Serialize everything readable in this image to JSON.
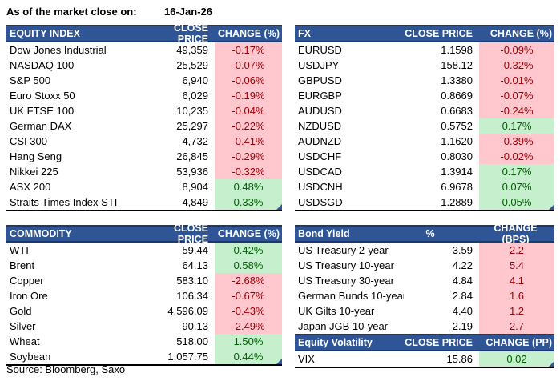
{
  "page": {
    "as_of_label": "As of the market close on:",
    "as_of_date": "16-Jan-26",
    "source": "Source: Bloomberg, Saxo"
  },
  "colors": {
    "header_bg": "#2F5597",
    "header_border": "#1F3864",
    "negative_bg": "#FFC7CE",
    "negative_text": "#9C0006",
    "positive_bg": "#C6EFCE",
    "positive_text": "#006100"
  },
  "tables": {
    "equity_index": {
      "title": "EQUITY INDEX",
      "col2": "CLOSE PRICE",
      "col3": "CHANGE (%)",
      "corner_marker": true,
      "rows": [
        [
          "Dow Jones Industrial",
          "49,359",
          "-0.17%",
          "neg"
        ],
        [
          "NASDAQ 100",
          "25,529",
          "-0.07%",
          "neg"
        ],
        [
          "S&P 500",
          "6,940",
          "-0.06%",
          "neg"
        ],
        [
          "Euro Stoxx 50",
          "6,029",
          "-0.19%",
          "neg"
        ],
        [
          "UK FTSE 100",
          "10,235",
          "-0.04%",
          "neg"
        ],
        [
          "German DAX",
          "25,297",
          "-0.22%",
          "neg"
        ],
        [
          "CSI 300",
          "4,732",
          "-0.41%",
          "neg"
        ],
        [
          "Hang Seng",
          "26,845",
          "-0.29%",
          "neg"
        ],
        [
          "Nikkei 225",
          "53,936",
          "-0.32%",
          "neg"
        ],
        [
          "ASX 200",
          "8,904",
          "0.48%",
          "pos"
        ],
        [
          "Straits Times Index STI",
          "4,849",
          "0.33%",
          "pos"
        ]
      ]
    },
    "fx": {
      "title": "FX",
      "col2": "CLOSE PRICE",
      "col3": "CHANGE (%)",
      "corner_marker": true,
      "rows": [
        [
          "EURUSD",
          "1.1598",
          "-0.09%",
          "neg"
        ],
        [
          "USDJPY",
          "158.12",
          "-0.32%",
          "neg"
        ],
        [
          "GBPUSD",
          "1.3380",
          "-0.01%",
          "neg"
        ],
        [
          "EURGBP",
          "0.8669",
          "-0.07%",
          "neg"
        ],
        [
          "AUDUSD",
          "0.6683",
          "-0.24%",
          "neg"
        ],
        [
          "NZDUSD",
          "0.5752",
          "0.17%",
          "pos"
        ],
        [
          "AUDNZD",
          "1.1620",
          "-0.39%",
          "neg"
        ],
        [
          "USDCHF",
          "0.8030",
          "-0.02%",
          "neg"
        ],
        [
          "USDCAD",
          "1.3914",
          "0.17%",
          "pos"
        ],
        [
          "USDCNH",
          "6.9678",
          "0.07%",
          "pos"
        ],
        [
          "USDSGD",
          "1.2889",
          "0.05%",
          "pos"
        ]
      ]
    },
    "commodity": {
      "title": "COMMODITY",
      "col2": "CLOSE PRICE",
      "col3": "CHANGE (%)",
      "corner_marker": true,
      "rows": [
        [
          "WTI",
          "59.44",
          "0.42%",
          "pos"
        ],
        [
          "Brent",
          "64.13",
          "0.58%",
          "pos"
        ],
        [
          "Copper",
          "583.10",
          "-2.68%",
          "neg"
        ],
        [
          "Iron Ore",
          "106.34",
          "-0.67%",
          "neg"
        ],
        [
          "Gold",
          "4,596.09",
          "-0.43%",
          "neg"
        ],
        [
          "Silver",
          "90.13",
          "-2.49%",
          "neg"
        ],
        [
          "Wheat",
          "518.00",
          "1.50%",
          "pos"
        ],
        [
          "Soybean",
          "1,057.75",
          "0.44%",
          "pos"
        ]
      ]
    },
    "bond_yield": {
      "title": "Bond Yield",
      "col2": "%",
      "col3": "CHANGE (BPS)",
      "corner_marker": false,
      "rows": [
        [
          "US Treasury 2-year",
          "3.59",
          "2.2",
          "neg"
        ],
        [
          "US Treasury 10-year",
          "4.22",
          "5.4",
          "neg"
        ],
        [
          "US Treasury 30-year",
          "4.84",
          "4.1",
          "neg"
        ],
        [
          "German Bunds 10-year",
          "2.84",
          "1.6",
          "neg"
        ],
        [
          "UK Gilts 10-year",
          "4.40",
          "1.2",
          "neg"
        ],
        [
          "Japan JGB 10-year",
          "2.19",
          "2.7",
          "neg"
        ]
      ]
    },
    "equity_volatility": {
      "title": "Equity Volatility",
      "col2": "CLOSE PRICE",
      "col3": "CHANGE (PP)",
      "corner_marker": true,
      "rows": [
        [
          "VIX",
          "15.86",
          "0.02",
          "pos"
        ]
      ]
    }
  }
}
